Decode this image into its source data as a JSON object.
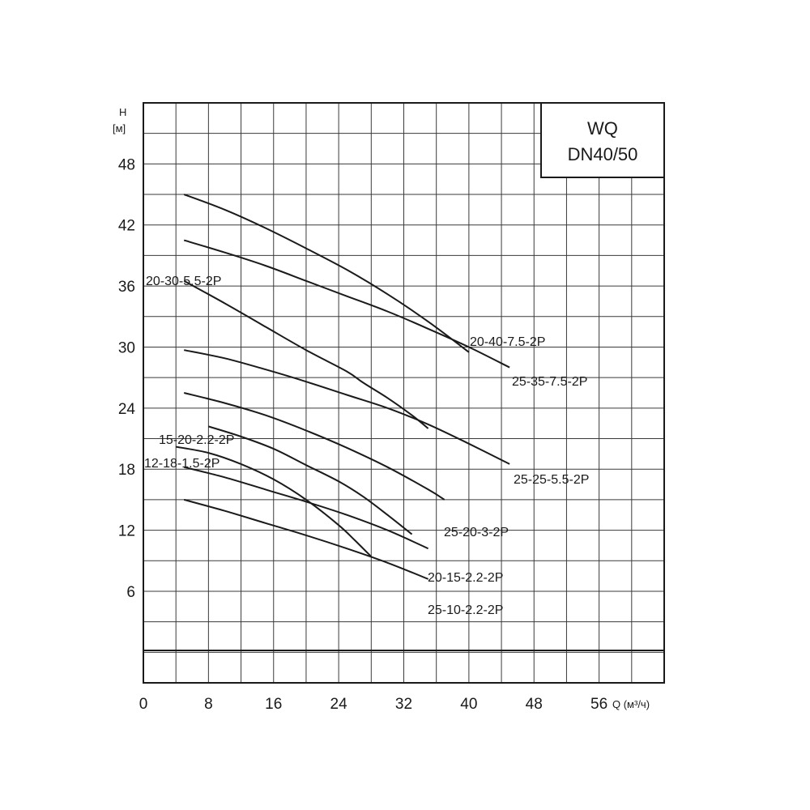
{
  "chart_data": {
    "type": "line",
    "title": [
      "WQ",
      "DN40/50"
    ],
    "ylabel": "H",
    "yunit": "[м]",
    "xlabel": "Q (м³/ч)",
    "xlim": [
      0,
      64
    ],
    "ylim": [
      -3,
      54
    ],
    "x_ticks": [
      0,
      8,
      16,
      24,
      32,
      40,
      48,
      56
    ],
    "y_ticks": [
      6,
      12,
      18,
      24,
      30,
      36,
      42,
      48
    ],
    "grid": true,
    "series": [
      {
        "name": "20-40-7.5-2P",
        "x": [
          5,
          10,
          15,
          20,
          25,
          30,
          35,
          40
        ],
        "y": [
          45,
          43.5,
          41.7,
          39.7,
          37.6,
          35.2,
          32.5,
          29.5
        ]
      },
      {
        "name": "25-35-7.5-2P",
        "x": [
          5,
          10,
          15,
          20,
          25,
          30,
          35,
          40,
          45
        ],
        "y": [
          40.5,
          39.3,
          38,
          36.5,
          35,
          33.5,
          31.8,
          30,
          28
        ]
      },
      {
        "name": "20-30-5.5-2P",
        "x": [
          5,
          10,
          15,
          20,
          25,
          27,
          30,
          33,
          35
        ],
        "y": [
          36.5,
          34.3,
          32,
          29.7,
          27.6,
          26.5,
          25,
          23.3,
          22
        ]
      },
      {
        "name": "25-25-5.5-2P",
        "x": [
          5,
          10,
          15,
          20,
          25,
          30,
          35,
          40,
          45
        ],
        "y": [
          29.7,
          28.9,
          27.8,
          26.6,
          25.3,
          24,
          22.4,
          20.5,
          18.5
        ]
      },
      {
        "name": "25-20-3-2P",
        "x": [
          5,
          10,
          15,
          20,
          25,
          30,
          35,
          37
        ],
        "y": [
          25.5,
          24.5,
          23.3,
          21.8,
          20.1,
          18.2,
          16,
          15
        ]
      },
      {
        "name": "15-20-2.2-2P",
        "x": [
          8,
          12,
          16,
          20,
          24,
          27,
          30,
          33
        ],
        "y": [
          22.2,
          21.2,
          20,
          18.4,
          16.8,
          15.3,
          13.5,
          11.6
        ]
      },
      {
        "name": "12-18-1.5-2P",
        "x": [
          4,
          8,
          12,
          16,
          20,
          24,
          26,
          28
        ],
        "y": [
          20.2,
          19.6,
          18.5,
          17,
          15,
          12.5,
          11,
          9.4
        ]
      },
      {
        "name": "20-15-2.2-2P",
        "x": [
          5,
          10,
          15,
          20,
          25,
          30,
          35
        ],
        "y": [
          18.2,
          17.2,
          16,
          14.8,
          13.5,
          12,
          10.2
        ]
      },
      {
        "name": "25-10-2.2-2P",
        "x": [
          5,
          10,
          15,
          20,
          25,
          30,
          35
        ],
        "y": [
          15,
          13.9,
          12.7,
          11.5,
          10.2,
          8.8,
          7.2
        ]
      }
    ]
  }
}
